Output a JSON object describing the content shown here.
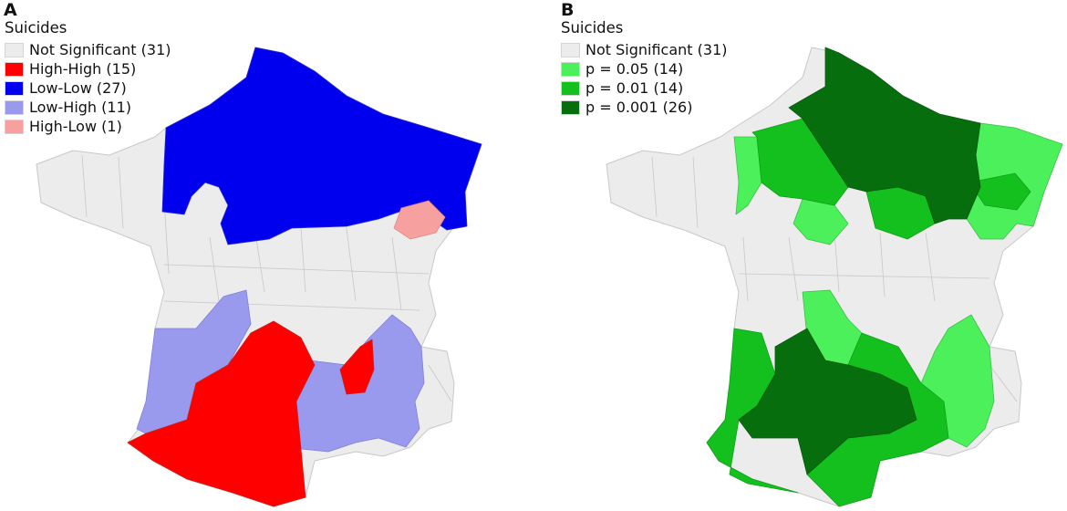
{
  "panels": [
    {
      "letter": "A",
      "legend": {
        "title": "Suicides",
        "items": [
          {
            "label": "Not Significant (31)",
            "color": "#ececec",
            "category": "ns"
          },
          {
            "label": "High-High (15)",
            "color": "#ff0000",
            "category": "hh"
          },
          {
            "label": "Low-Low (27)",
            "color": "#0000ee",
            "category": "ll"
          },
          {
            "label": "Low-High (11)",
            "color": "#9999ee",
            "category": "lh"
          },
          {
            "label": "High-Low (1)",
            "color": "#f7a0a0",
            "category": "hl"
          }
        ]
      }
    },
    {
      "letter": "B",
      "legend": {
        "title": "Suicides",
        "items": [
          {
            "label": "Not Significant (31)",
            "color": "#ececec",
            "category": "ns"
          },
          {
            "label": "p = 0.05 (14)",
            "color": "#4cf05a",
            "category": "p05"
          },
          {
            "label": "p = 0.01 (14)",
            "color": "#14c01e",
            "category": "p01"
          },
          {
            "label": "p = 0.001 (26)",
            "color": "#076e0d",
            "category": "p001"
          }
        ]
      }
    }
  ]
}
